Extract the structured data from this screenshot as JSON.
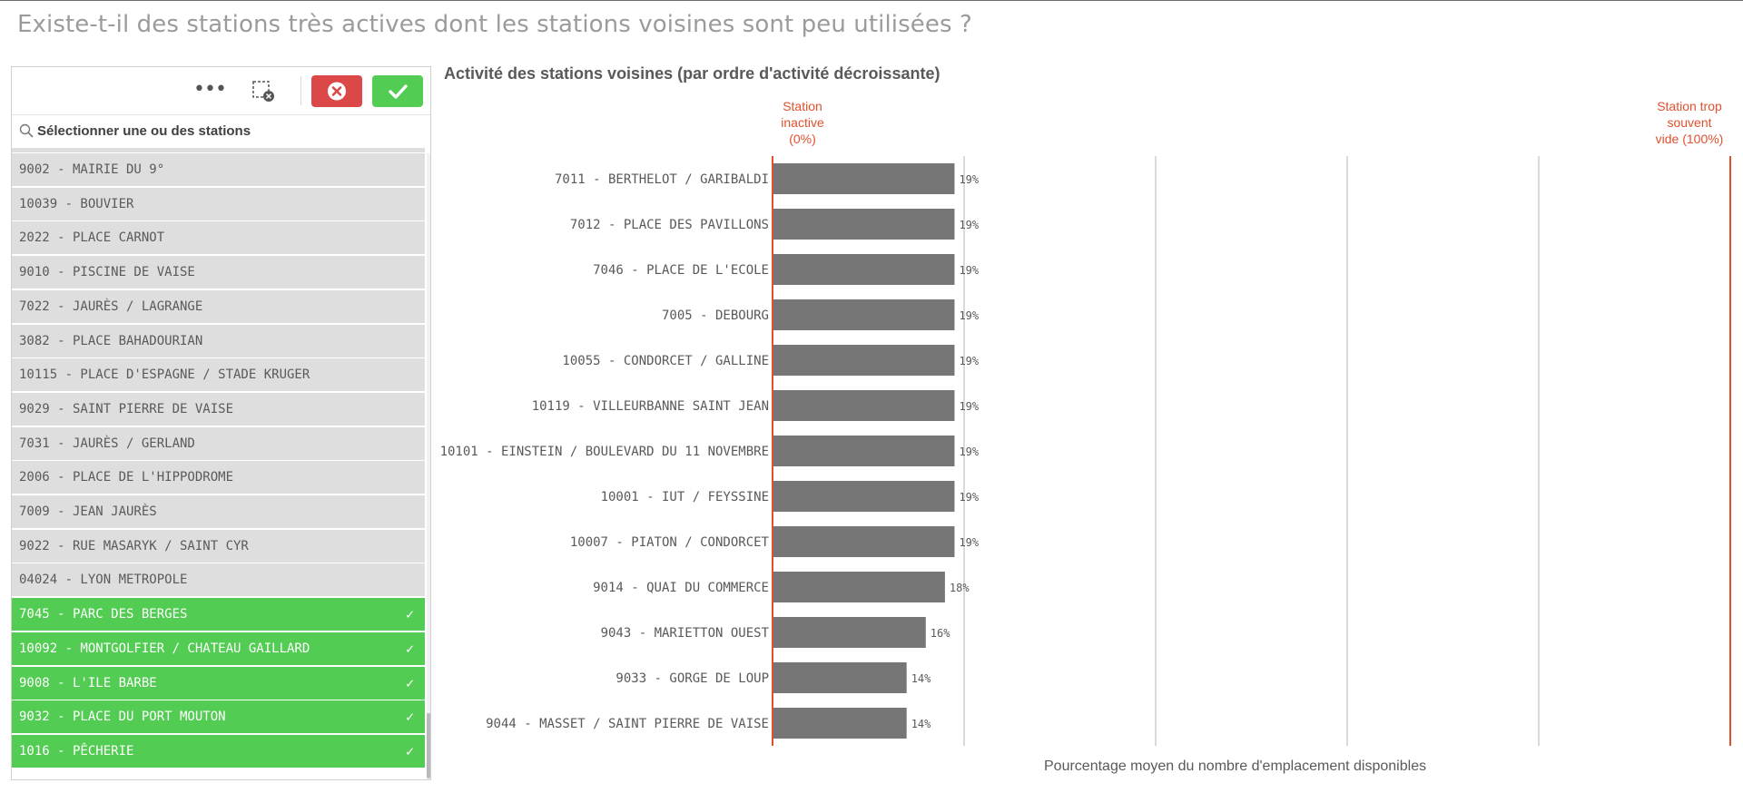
{
  "page_title": "Existe-t-il des stations très actives dont les stations voisines sont peu utilisées ?",
  "filter": {
    "more_icon": "ellipsis-icon",
    "clear_icon": "clear-selection-icon",
    "cancel_icon": "x-circle-icon",
    "confirm_icon": "checkmark-icon",
    "search_placeholder": "Sélectionner une ou des stations",
    "items": [
      {
        "label": "9002 - MAIRIE DU 9°",
        "selected": false
      },
      {
        "label": "10039 - BOUVIER",
        "selected": false
      },
      {
        "label": "2022 - PLACE CARNOT",
        "selected": false
      },
      {
        "label": "9010 - PISCINE DE VAISE",
        "selected": false
      },
      {
        "label": "7022 - JAURÈS / LAGRANGE",
        "selected": false
      },
      {
        "label": "3082 - PLACE BAHADOURIAN",
        "selected": false
      },
      {
        "label": "10115 - PLACE D'ESPAGNE / STADE KRUGER",
        "selected": false
      },
      {
        "label": "9029 - SAINT PIERRE DE VAISE",
        "selected": false
      },
      {
        "label": "7031 - JAURÈS / GERLAND",
        "selected": false
      },
      {
        "label": "2006 - PLACE DE L'HIPPODROME",
        "selected": false
      },
      {
        "label": "7009 - JEAN JAURÈS",
        "selected": false
      },
      {
        "label": "9022 - RUE MASARYK / SAINT CYR",
        "selected": false
      },
      {
        "label": "04024 - LYON METROPOLE",
        "selected": false
      },
      {
        "label": "7045 - PARC DES BERGES",
        "selected": true
      },
      {
        "label": "10092 - MONTGOLFIER / CHATEAU GAILLARD",
        "selected": true
      },
      {
        "label": "9008 - L'ILE BARBE",
        "selected": true
      },
      {
        "label": "9032 - PLACE DU PORT MOUTON",
        "selected": true
      },
      {
        "label": "1016 - PÊCHERIE",
        "selected": true
      }
    ],
    "check_mark": "✓"
  },
  "chart": {
    "title": "Activité des stations voisines (par ordre d'activité décroissante)",
    "axis_title": "Pourcentage moyen du nombre d'emplacement disponibles",
    "ref_inactive": [
      "Station",
      "inactive",
      "(0%)"
    ],
    "ref_empty": [
      "Station trop",
      "souvent",
      "vide (100%)"
    ],
    "ref_color": "#e0502d",
    "bar_color": "#767676"
  },
  "chart_data": {
    "type": "bar",
    "orientation": "horizontal",
    "title": "Activité des stations voisines (par ordre d'activité décroissante)",
    "xlabel": "Pourcentage moyen du nombre d'emplacement disponibles",
    "xlim": [
      0,
      100
    ],
    "grid": true,
    "reference_lines": [
      {
        "value": 0,
        "label": "Station inactive (0%)"
      },
      {
        "value": 100,
        "label": "Station trop souvent vide (100%)"
      }
    ],
    "categories": [
      "7011 - BERTHELOT / GARIBALDI",
      "7012 - PLACE DES PAVILLONS",
      "7046 - PLACE DE L'ECOLE",
      "7005 - DEBOURG",
      "10055 - CONDORCET / GALLINE",
      "10119 - VILLEURBANNE SAINT JEAN",
      "10101 - EINSTEIN / BOULEVARD DU 11 NOVEMBRE",
      "10001 - IUT / FEYSSINE",
      "10007 - PIATON / CONDORCET",
      "9014 - QUAI DU COMMERCE",
      "9043 - MARIETTON OUEST",
      "9033 - GORGE DE LOUP",
      "9044 - MASSET / SAINT PIERRE DE VAISE"
    ],
    "values": [
      19,
      19,
      19,
      19,
      19,
      19,
      19,
      19,
      19,
      18,
      16,
      14,
      14
    ],
    "labels": [
      "19%",
      "19%",
      "19%",
      "19%",
      "19%",
      "19%",
      "19%",
      "19%",
      "19%",
      "18%",
      "16%",
      "14%",
      "14%"
    ]
  }
}
